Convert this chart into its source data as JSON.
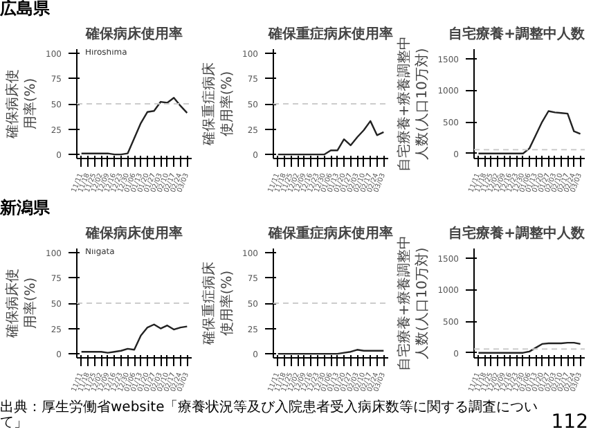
{
  "chart_data": [
    {
      "type": "line",
      "title": "確保病床使用率",
      "ylabel": "確保病床使用率(%)",
      "annotations": [
        "広島県",
        "Hiroshima"
      ],
      "categories": [
        "11/11",
        "11/18",
        "11/25",
        "12/02",
        "12/09",
        "12/16",
        "12/23",
        "12/30",
        "01/06",
        "01/13",
        "01/20",
        "01/27",
        "02/03",
        "02/10",
        "02/17",
        "02/24",
        "03/03"
      ],
      "ylim": [
        -4,
        104
      ],
      "yticks": [
        0,
        25,
        50,
        75,
        100
      ],
      "ref_lines": [
        {
          "axis": "y",
          "value": 50,
          "color": "#cccccc",
          "line_style": "dashed"
        }
      ],
      "series": [
        {
          "color": "#222222",
          "values": [
            1,
            1,
            1,
            1,
            1,
            0,
            0,
            1,
            16,
            31,
            42,
            43,
            52,
            51,
            56,
            48,
            41
          ]
        }
      ]
    },
    {
      "type": "line",
      "title": "確保重症病床使用率",
      "ylabel": "確保重症病床使用率(%)",
      "categories": [
        "11/11",
        "11/18",
        "11/25",
        "12/02",
        "12/09",
        "12/16",
        "12/23",
        "12/30",
        "01/06",
        "01/13",
        "01/20",
        "01/27",
        "02/03",
        "02/10",
        "02/17",
        "02/24",
        "03/03"
      ],
      "ylim": [
        -4,
        104
      ],
      "yticks": [
        0,
        25,
        50,
        75,
        100
      ],
      "ref_lines": [
        {
          "axis": "y",
          "value": 50,
          "color": "#cccccc",
          "line_style": "dashed"
        }
      ],
      "series": [
        {
          "color": "#222222",
          "values": [
            0,
            0,
            0,
            0,
            0,
            0,
            0,
            0,
            4,
            4,
            15,
            9,
            17,
            24,
            33,
            19,
            22
          ]
        }
      ]
    },
    {
      "type": "line",
      "title": "自宅療養+調整中人数",
      "ylabel": "自宅療養+療養調整中人数(人口10万対)",
      "categories": [
        "11/11",
        "11/18",
        "11/25",
        "12/02",
        "12/09",
        "12/16",
        "12/23",
        "12/30",
        "01/06",
        "01/13",
        "01/20",
        "01/27",
        "02/03",
        "02/10",
        "02/17",
        "02/24",
        "03/03"
      ],
      "ylim": [
        -80,
        1650
      ],
      "yticks": [
        0,
        500,
        1000,
        1500
      ],
      "ref_lines": [
        {
          "axis": "y",
          "value": 60,
          "color": "#cccccc",
          "line_style": "dashed"
        }
      ],
      "series": [
        {
          "color": "#222222",
          "values": [
            0,
            0,
            0,
            0,
            0,
            0,
            0,
            0,
            80,
            290,
            500,
            670,
            650,
            640,
            630,
            350,
            310
          ]
        }
      ]
    },
    {
      "type": "line",
      "title": "確保病床使用率",
      "ylabel": "確保病床使用率(%)",
      "annotations": [
        "新潟県",
        "Niigata"
      ],
      "categories": [
        "11/11",
        "11/18",
        "11/25",
        "12/02",
        "12/09",
        "12/16",
        "12/23",
        "12/30",
        "01/06",
        "01/13",
        "01/20",
        "01/27",
        "02/03",
        "02/10",
        "02/17",
        "02/24",
        "03/03"
      ],
      "ylim": [
        -4,
        104
      ],
      "yticks": [
        0,
        25,
        50,
        75,
        100
      ],
      "ref_lines": [
        {
          "axis": "y",
          "value": 50,
          "color": "#cccccc",
          "line_style": "dashed"
        }
      ],
      "series": [
        {
          "color": "#222222",
          "values": [
            2,
            2,
            2,
            2,
            1,
            2,
            3,
            5,
            4,
            18,
            26,
            29,
            25,
            28,
            24,
            26,
            27
          ]
        }
      ]
    },
    {
      "type": "line",
      "title": "確保重症病床使用率",
      "ylabel": "確保重症病床使用率(%)",
      "categories": [
        "11/11",
        "11/18",
        "11/25",
        "12/02",
        "12/09",
        "12/16",
        "12/23",
        "12/30",
        "01/06",
        "01/13",
        "01/20",
        "01/27",
        "02/03",
        "02/10",
        "02/17",
        "02/24",
        "03/03"
      ],
      "ylim": [
        -4,
        104
      ],
      "yticks": [
        0,
        25,
        50,
        75,
        100
      ],
      "ref_lines": [
        {
          "axis": "y",
          "value": 50,
          "color": "#cccccc",
          "line_style": "dashed"
        }
      ],
      "series": [
        {
          "color": "#222222",
          "values": [
            0,
            0,
            0,
            0,
            0,
            0,
            0,
            0,
            0,
            0,
            1,
            2,
            4,
            3,
            3,
            3,
            3
          ]
        }
      ]
    },
    {
      "type": "line",
      "title": "自宅療養+調整中人数",
      "ylabel": "自宅療養+療養調整中人数(人口10万対)",
      "annotations": [
        "出典：厚生労働省website「療養状況等及び入院患者受入病床数等に関する調査について」",
        "112"
      ],
      "categories": [
        "11/11",
        "11/18",
        "11/25",
        "12/02",
        "12/09",
        "12/16",
        "12/23",
        "12/30",
        "01/06",
        "01/13",
        "01/20",
        "01/27",
        "02/03",
        "02/10",
        "02/17",
        "02/24",
        "03/03"
      ],
      "ylim": [
        -80,
        1650
      ],
      "yticks": [
        0,
        500,
        1000,
        1500
      ],
      "ref_lines": [
        {
          "axis": "y",
          "value": 60,
          "color": "#cccccc",
          "line_style": "dashed"
        }
      ],
      "series": [
        {
          "color": "#222222",
          "values": [
            0,
            0,
            0,
            0,
            0,
            0,
            0,
            0,
            20,
            80,
            140,
            150,
            150,
            150,
            160,
            160,
            140
          ]
        }
      ]
    }
  ]
}
